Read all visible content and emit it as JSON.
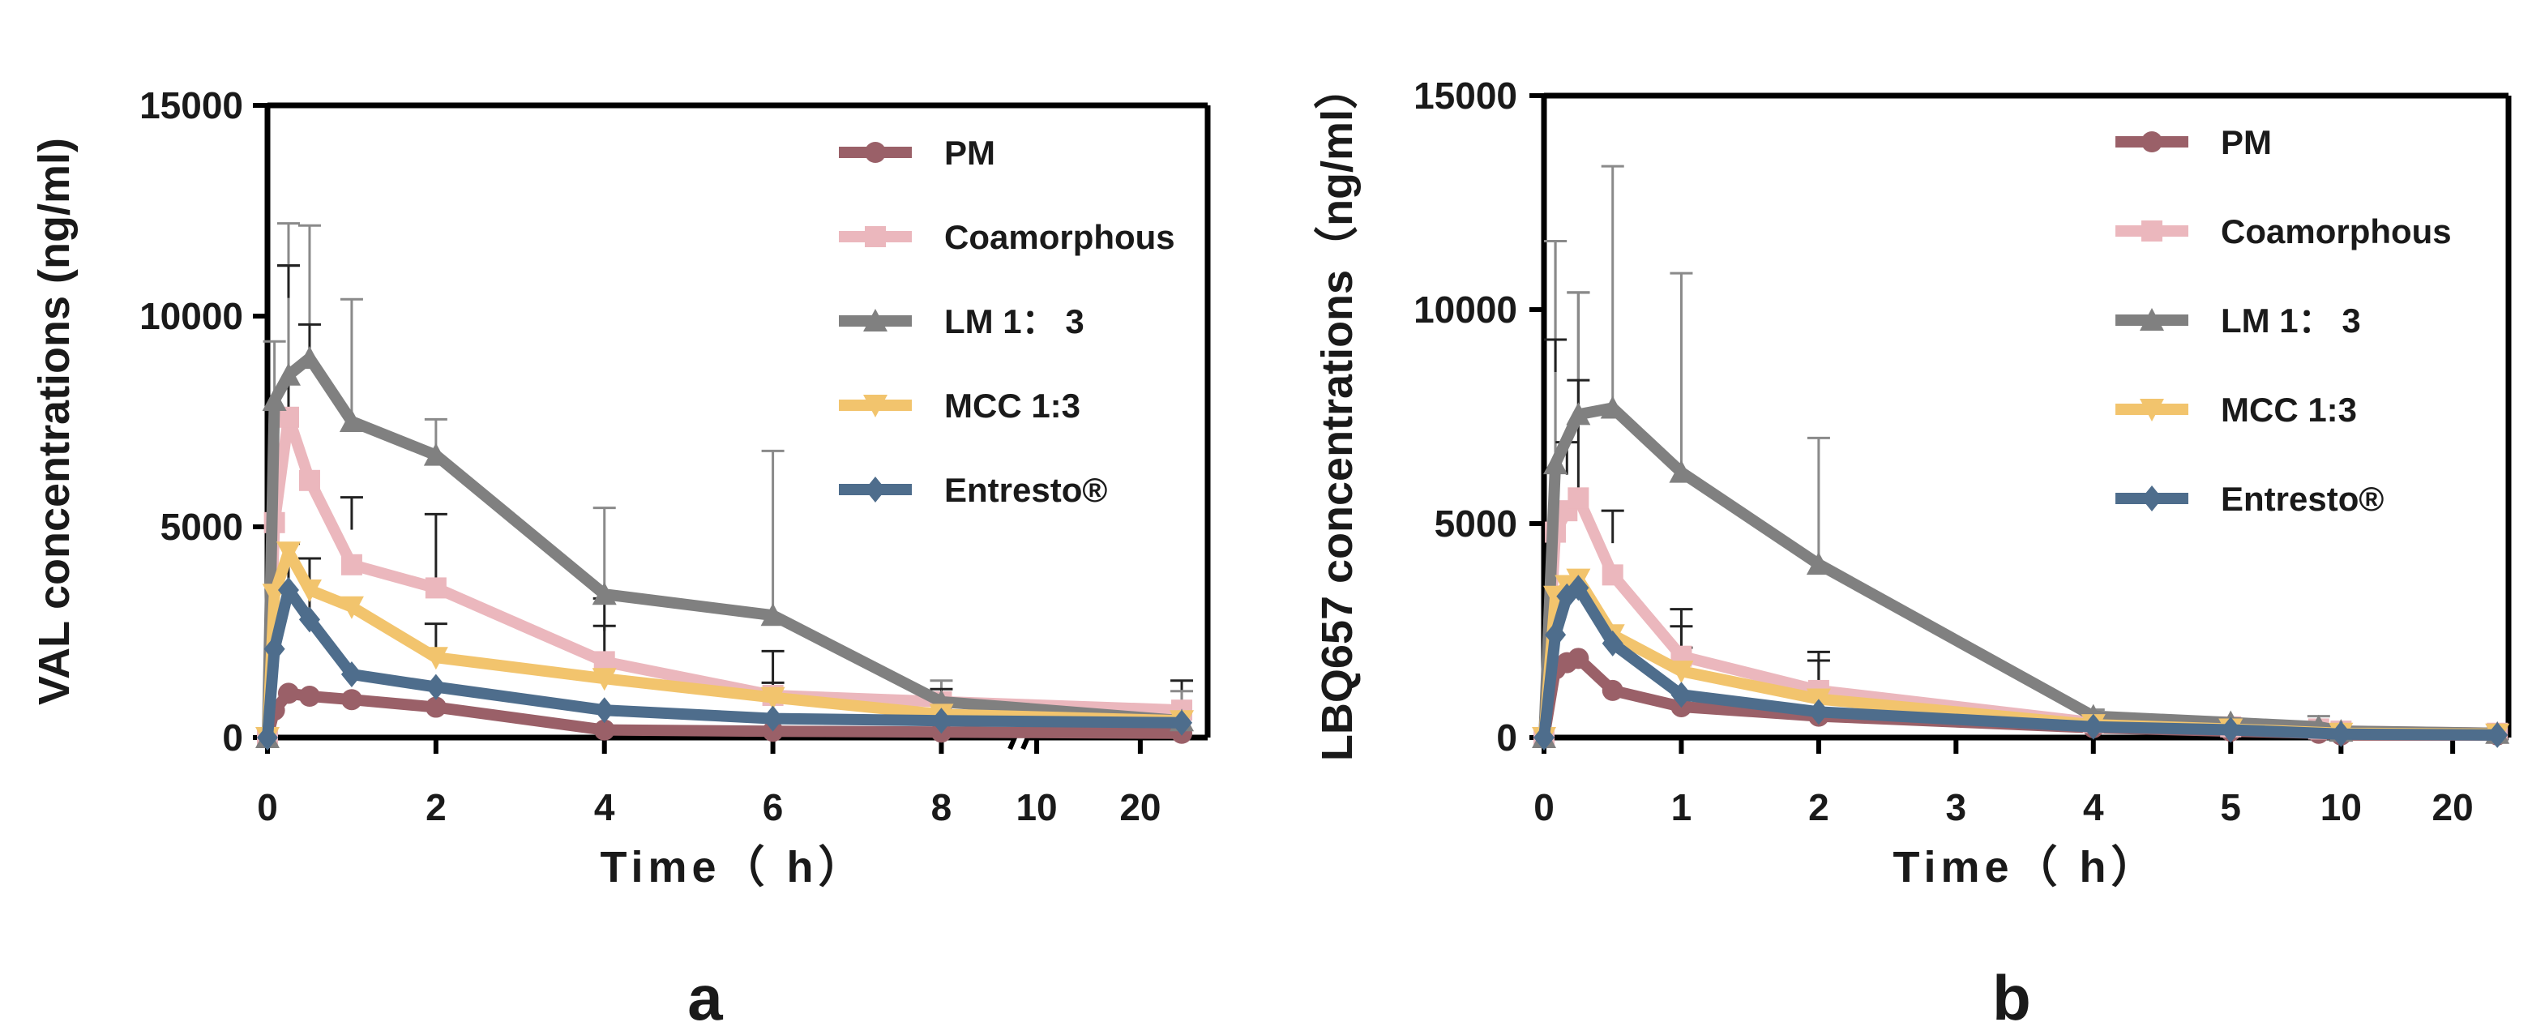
{
  "colors": {
    "PM": "#9a6068",
    "Coamorphous": "#ebb7bd",
    "LM 1： 3": "#808080",
    "MCC 1:3": "#f2c46d",
    "Entresto®": "#4e6d8c"
  },
  "chart_data": [
    {
      "type": "line",
      "panel_label": "a",
      "xlabel": "Time（ h）",
      "ylabel": "VAL concentrations (ng/ml)",
      "ylim": [
        0,
        15000
      ],
      "yticks": [
        0,
        5000,
        10000,
        15000
      ],
      "x_segments": [
        {
          "range": [
            0,
            8.9
          ],
          "ticks": [
            0,
            2,
            4,
            6,
            8
          ]
        },
        {
          "range": [
            8.9,
            26.5
          ],
          "ticks": [
            10,
            20
          ]
        }
      ],
      "axis_break": true,
      "legend_position": "top-right",
      "series": [
        {
          "name": "PM",
          "marker": "circle",
          "x": [
            0,
            0.083,
            0.25,
            0.5,
            1,
            2,
            4,
            6,
            8,
            24
          ],
          "y": [
            0,
            650,
            1050,
            980,
            900,
            720,
            180,
            150,
            130,
            100
          ],
          "err": [
            0,
            0,
            0,
            0,
            0,
            0,
            0,
            0,
            0,
            0
          ]
        },
        {
          "name": "Coamorphous",
          "marker": "square",
          "x": [
            0,
            0.083,
            0.25,
            0.5,
            1,
            2,
            4,
            6,
            8,
            24
          ],
          "y": [
            0,
            5100,
            7600,
            6100,
            4100,
            3550,
            1800,
            1000,
            850,
            650
          ],
          "err": [
            0,
            0,
            3600,
            0,
            0,
            1750,
            0,
            0,
            0,
            700
          ]
        },
        {
          "name": "LM 1： 3",
          "marker": "triangle-up",
          "x": [
            0,
            0.083,
            0.25,
            0.5,
            1,
            2,
            4,
            6,
            8,
            24
          ],
          "y": [
            0,
            8000,
            8600,
            9000,
            7500,
            6700,
            3400,
            2900,
            850,
            400
          ],
          "err": [
            0,
            1400,
            3600,
            3150,
            2900,
            850,
            2050,
            3900,
            500,
            700
          ]
        },
        {
          "name": "MCC 1:3",
          "marker": "triangle-down",
          "x": [
            0,
            0.083,
            0.25,
            0.5,
            1,
            2,
            4,
            6,
            8,
            24
          ],
          "y": [
            0,
            3400,
            4400,
            3500,
            3100,
            1900,
            1400,
            950,
            550,
            400
          ],
          "err": [
            0,
            0,
            0,
            0,
            0,
            0,
            0,
            0,
            0,
            0
          ]
        },
        {
          "name": "Entresto®",
          "marker": "diamond",
          "x": [
            0,
            0.083,
            0.25,
            0.5,
            1,
            2,
            4,
            6,
            8,
            24
          ],
          "y": [
            0,
            2100,
            3500,
            2800,
            1500,
            1200,
            650,
            450,
            400,
            350
          ],
          "err": [
            0,
            0,
            1100,
            1450,
            0,
            0,
            0,
            0,
            0,
            0
          ]
        }
      ],
      "extra_caps": [
        {
          "x": 0.25,
          "y": 11200
        },
        {
          "x": 0.5,
          "y": 9800
        },
        {
          "x": 1,
          "y": 5700
        },
        {
          "x": 2,
          "y": 2700
        },
        {
          "x": 4,
          "y": 2650
        },
        {
          "x": 4,
          "y": 3300
        },
        {
          "x": 6,
          "y": 1300
        },
        {
          "x": 6,
          "y": 2050
        },
        {
          "x": 8,
          "y": 1150
        }
      ]
    },
    {
      "type": "line",
      "panel_label": "b",
      "xlabel": "Time（ h）",
      "ylabel": "LBQ657 concentrations（ng/ml）",
      "ylim": [
        0,
        15000
      ],
      "yticks": [
        0,
        5000,
        10000,
        15000
      ],
      "x_segments": [
        {
          "range": [
            0,
            5.4
          ],
          "ticks": [
            0,
            1,
            2,
            3,
            4,
            5
          ]
        },
        {
          "range": [
            5.4,
            25
          ],
          "ticks": [
            10,
            20
          ]
        }
      ],
      "axis_break": false,
      "legend_position": "top-right",
      "series": [
        {
          "name": "PM",
          "marker": "circle",
          "x": [
            0,
            0.083,
            0.167,
            0.25,
            0.5,
            1,
            2,
            4,
            5,
            8,
            10,
            24
          ],
          "y": [
            0,
            1600,
            1750,
            1850,
            1100,
            720,
            500,
            230,
            150,
            100,
            60,
            60
          ],
          "err": [
            0,
            0,
            0,
            0,
            0,
            0,
            0,
            0,
            0,
            0,
            0,
            0
          ]
        },
        {
          "name": "Coamorphous",
          "marker": "square",
          "x": [
            0,
            0.083,
            0.167,
            0.25,
            0.5,
            1,
            2,
            4,
            5,
            8,
            10,
            24
          ],
          "y": [
            0,
            4800,
            5300,
            5600,
            3800,
            1900,
            1100,
            350,
            250,
            200,
            150,
            100
          ],
          "err": [
            0,
            6800,
            0,
            4800,
            0,
            1100,
            900,
            0,
            0,
            0,
            0,
            0
          ]
        },
        {
          "name": "LM 1： 3",
          "marker": "triangle-up",
          "x": [
            0,
            0.083,
            0.25,
            0.5,
            1,
            2,
            4,
            5,
            8,
            10,
            24
          ],
          "y": [
            0,
            6400,
            7550,
            7700,
            6200,
            4050,
            500,
            350,
            250,
            150,
            100
          ],
          "err": [
            0,
            5200,
            2850,
            5650,
            4650,
            2950,
            150,
            0,
            250,
            0,
            0
          ]
        },
        {
          "name": "MCC 1:3",
          "marker": "triangle-down",
          "x": [
            0,
            0.083,
            0.167,
            0.25,
            0.5,
            1,
            2,
            4,
            5,
            10,
            24
          ],
          "y": [
            0,
            3300,
            3550,
            3700,
            2400,
            1550,
            900,
            300,
            200,
            100,
            80
          ],
          "err": [
            0,
            0,
            0,
            0,
            0,
            0,
            0,
            0,
            0,
            0,
            0
          ]
        },
        {
          "name": "Entresto®",
          "marker": "diamond",
          "x": [
            0,
            0.083,
            0.167,
            0.25,
            0.5,
            1,
            2,
            4,
            5,
            10,
            24
          ],
          "y": [
            0,
            2400,
            3300,
            3500,
            2200,
            1000,
            600,
            250,
            180,
            80,
            60
          ],
          "err": [
            0,
            0,
            0,
            0,
            0,
            0,
            0,
            0,
            0,
            0,
            0
          ]
        }
      ],
      "extra_caps": [
        {
          "x": 0.083,
          "y": 9300
        },
        {
          "x": 0.167,
          "y": 6900
        },
        {
          "x": 0.25,
          "y": 8350
        },
        {
          "x": 0.5,
          "y": 5300
        },
        {
          "x": 1,
          "y": 2600
        },
        {
          "x": 1,
          "y": 2100
        },
        {
          "x": 2,
          "y": 1800
        }
      ]
    }
  ]
}
